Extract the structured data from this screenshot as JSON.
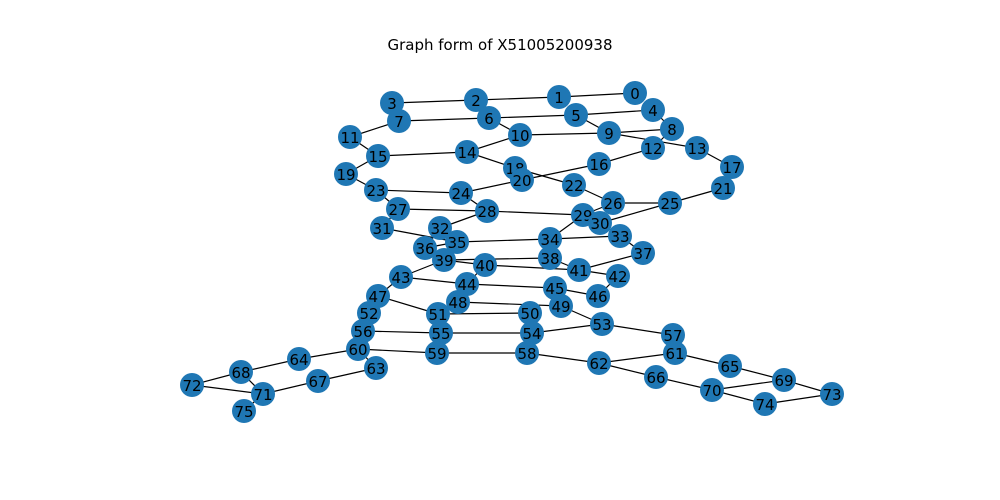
{
  "title": "Graph form of X51005200938",
  "colors": {
    "node": "#1f77b4",
    "edge": "#000000",
    "label": "#000000"
  },
  "nodes": [
    "0",
    "1",
    "2",
    "3",
    "4",
    "5",
    "6",
    "7",
    "8",
    "9",
    "10",
    "11",
    "12",
    "13",
    "14",
    "15",
    "16",
    "17",
    "18",
    "19",
    "20",
    "21",
    "22",
    "23",
    "24",
    "25",
    "26",
    "27",
    "28",
    "29",
    "30",
    "31",
    "32",
    "33",
    "34",
    "35",
    "36",
    "37",
    "38",
    "39",
    "40",
    "41",
    "42",
    "43",
    "44",
    "45",
    "46",
    "47",
    "48",
    "49",
    "50",
    "51",
    "52",
    "53",
    "54",
    "55",
    "56",
    "57",
    "58",
    "59",
    "60",
    "61",
    "62",
    "63",
    "64",
    "65",
    "66",
    "67",
    "68",
    "69",
    "70",
    "71",
    "72",
    "73",
    "74",
    "75"
  ],
  "edges": [
    [
      "0",
      "1"
    ],
    [
      "1",
      "2"
    ],
    [
      "2",
      "3"
    ],
    [
      "2",
      "6"
    ],
    [
      "3",
      "7"
    ],
    [
      "4",
      "5"
    ],
    [
      "4",
      "8"
    ],
    [
      "5",
      "6"
    ],
    [
      "5",
      "9"
    ],
    [
      "6",
      "7"
    ],
    [
      "6",
      "10"
    ],
    [
      "7",
      "11"
    ],
    [
      "8",
      "9"
    ],
    [
      "8",
      "12"
    ],
    [
      "9",
      "10"
    ],
    [
      "9",
      "13"
    ],
    [
      "10",
      "14"
    ],
    [
      "11",
      "15"
    ],
    [
      "12",
      "16"
    ],
    [
      "13",
      "17"
    ],
    [
      "14",
      "15"
    ],
    [
      "14",
      "18"
    ],
    [
      "15",
      "19"
    ],
    [
      "16",
      "20"
    ],
    [
      "17",
      "21"
    ],
    [
      "18",
      "20"
    ],
    [
      "18",
      "22"
    ],
    [
      "19",
      "23"
    ],
    [
      "20",
      "24"
    ],
    [
      "21",
      "25"
    ],
    [
      "22",
      "26"
    ],
    [
      "23",
      "24"
    ],
    [
      "23",
      "27"
    ],
    [
      "24",
      "28"
    ],
    [
      "25",
      "26"
    ],
    [
      "25",
      "30"
    ],
    [
      "26",
      "29"
    ],
    [
      "27",
      "28"
    ],
    [
      "27",
      "31"
    ],
    [
      "28",
      "29"
    ],
    [
      "28",
      "32"
    ],
    [
      "29",
      "30"
    ],
    [
      "29",
      "34"
    ],
    [
      "30",
      "33"
    ],
    [
      "31",
      "35"
    ],
    [
      "32",
      "36"
    ],
    [
      "33",
      "34"
    ],
    [
      "33",
      "37"
    ],
    [
      "34",
      "35"
    ],
    [
      "35",
      "36"
    ],
    [
      "36",
      "39"
    ],
    [
      "37",
      "41"
    ],
    [
      "38",
      "39"
    ],
    [
      "38",
      "41"
    ],
    [
      "39",
      "40"
    ],
    [
      "39",
      "43"
    ],
    [
      "40",
      "41"
    ],
    [
      "40",
      "44"
    ],
    [
      "41",
      "42"
    ],
    [
      "42",
      "46"
    ],
    [
      "43",
      "44"
    ],
    [
      "43",
      "47"
    ],
    [
      "44",
      "45"
    ],
    [
      "45",
      "46"
    ],
    [
      "45",
      "49"
    ],
    [
      "47",
      "51"
    ],
    [
      "47",
      "52"
    ],
    [
      "48",
      "49"
    ],
    [
      "48",
      "51"
    ],
    [
      "49",
      "53"
    ],
    [
      "50",
      "51"
    ],
    [
      "50",
      "54"
    ],
    [
      "52",
      "56"
    ],
    [
      "53",
      "54"
    ],
    [
      "53",
      "57"
    ],
    [
      "54",
      "55"
    ],
    [
      "55",
      "56"
    ],
    [
      "55",
      "59"
    ],
    [
      "57",
      "61"
    ],
    [
      "58",
      "59"
    ],
    [
      "58",
      "62"
    ],
    [
      "59",
      "60"
    ],
    [
      "60",
      "63"
    ],
    [
      "60",
      "64"
    ],
    [
      "61",
      "62"
    ],
    [
      "61",
      "65"
    ],
    [
      "62",
      "66"
    ],
    [
      "63",
      "67"
    ],
    [
      "64",
      "68"
    ],
    [
      "65",
      "69"
    ],
    [
      "66",
      "70"
    ],
    [
      "67",
      "71"
    ],
    [
      "68",
      "72"
    ],
    [
      "68",
      "71"
    ],
    [
      "69",
      "73"
    ],
    [
      "69",
      "70"
    ],
    [
      "70",
      "74"
    ],
    [
      "71",
      "72"
    ],
    [
      "71",
      "75"
    ],
    [
      "73",
      "74"
    ]
  ]
}
